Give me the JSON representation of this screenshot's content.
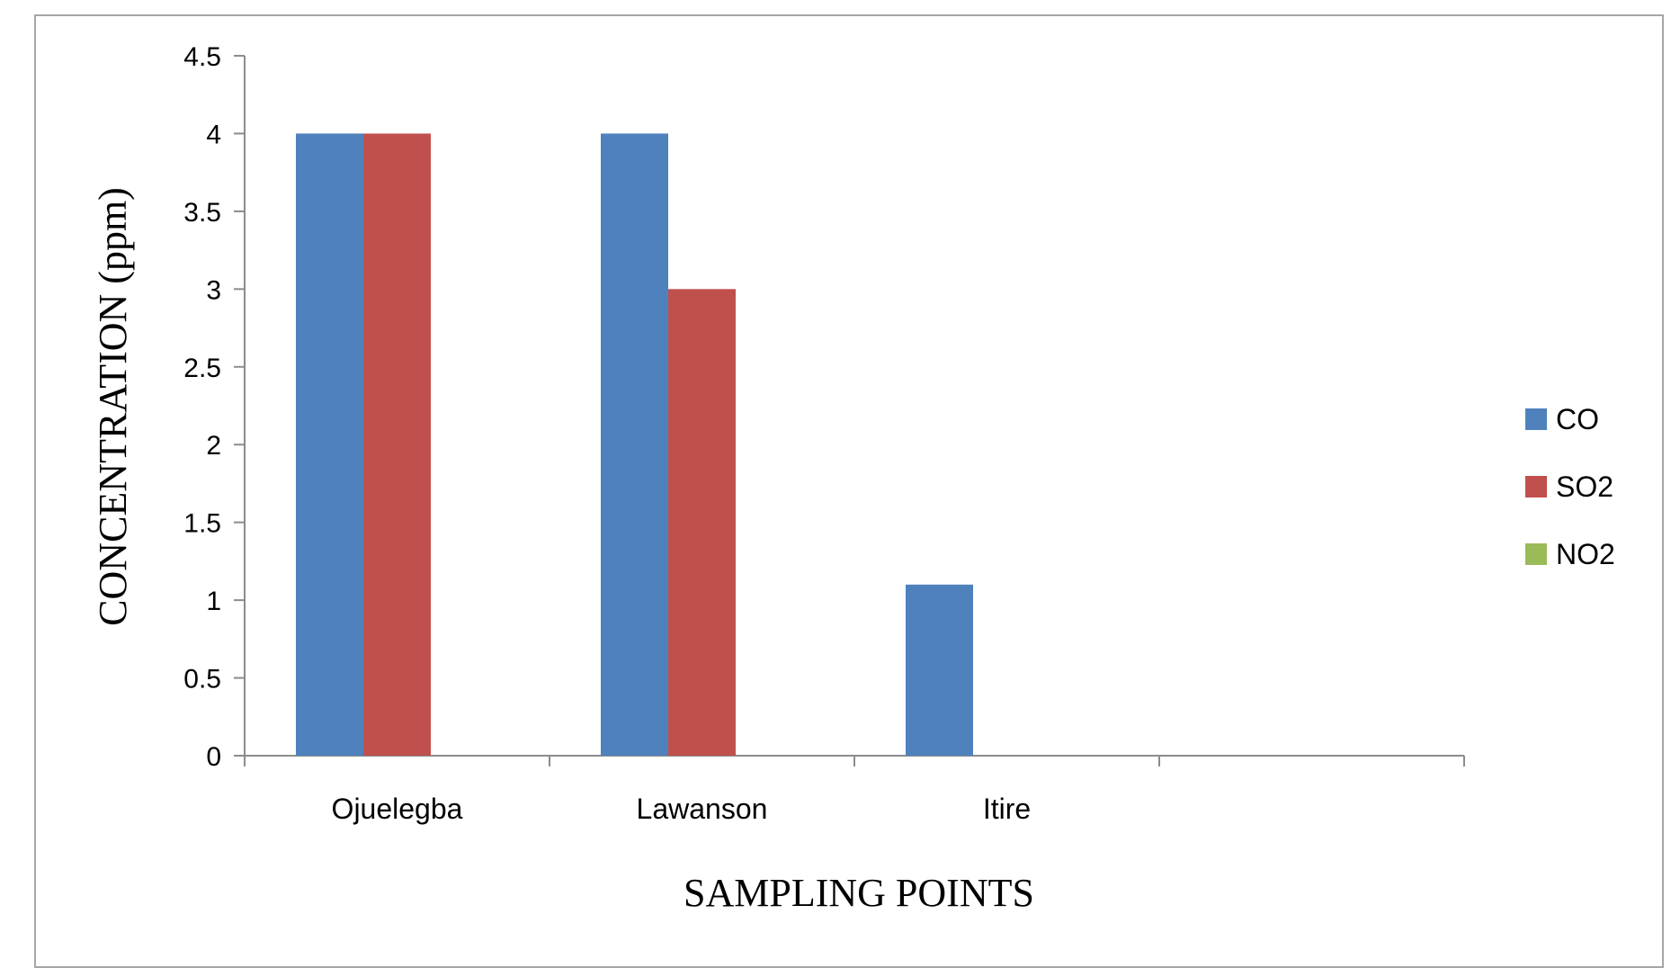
{
  "chart_data": {
    "type": "bar",
    "title": "",
    "xlabel": "SAMPLING POINTS",
    "ylabel": "CONCENTRATION (ppm)",
    "categories": [
      "Ojuelegba",
      "Lawanson",
      "Itire",
      ""
    ],
    "series": [
      {
        "name": "CO",
        "color": "#4f81bd",
        "values": [
          4,
          4,
          1.1,
          0
        ]
      },
      {
        "name": "SO2",
        "color": "#c0504d",
        "values": [
          4,
          3,
          0,
          0
        ]
      },
      {
        "name": "NO2",
        "color": "#9bbb59",
        "values": [
          0,
          0,
          0,
          0
        ]
      }
    ],
    "ylim": [
      0,
      4.5
    ],
    "yticks": [
      "0",
      "0.5",
      "1",
      "1.5",
      "2",
      "2.5",
      "3",
      "3.5",
      "4",
      "4.5"
    ],
    "grid": false,
    "legend_position": "right"
  }
}
